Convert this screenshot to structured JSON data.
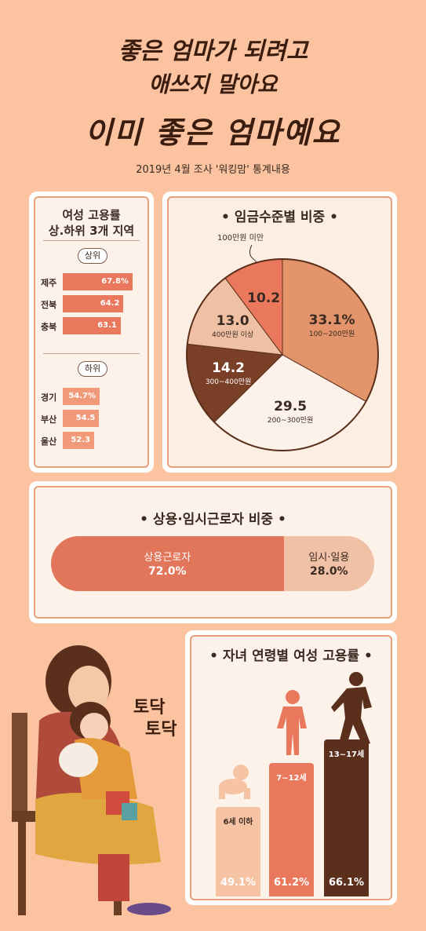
{
  "header": {
    "line1": "좋은 엄마가 되려고",
    "line2": "애쓰지 말아요",
    "line3": "이미 좋은 엄마예요",
    "subtitle": "2019년 4월 조사 '워킹맘' 통계내용"
  },
  "regions": {
    "title_line1": "여성 고용률",
    "title_line2": "상.하위 3개 지역",
    "top_label": "상위",
    "bottom_label": "하위",
    "top": [
      {
        "name": "제주",
        "value_label": "67.8%"
      },
      {
        "name": "전북",
        "value_label": "64.2"
      },
      {
        "name": "충북",
        "value_label": "63.1"
      }
    ],
    "bottom": [
      {
        "name": "경기",
        "value_label": "54.7%"
      },
      {
        "name": "부산",
        "value_label": "54.5"
      },
      {
        "name": "울산",
        "value_label": "52.3"
      }
    ]
  },
  "wage": {
    "title": "• 임금수준별 비중 •",
    "callout": "100만원 미만",
    "slices": [
      {
        "value_label": "33.1%",
        "label": "100~200만원"
      },
      {
        "value_label": "29.5",
        "label": "200~300만원"
      },
      {
        "value_label": "14.2",
        "label": "300~400만원"
      },
      {
        "value_label": "13.0",
        "label": "400만원 이상"
      },
      {
        "value_label": "10.2",
        "label": ""
      }
    ]
  },
  "employment": {
    "title": "• 상용·임시근로자 비중 •",
    "regular": {
      "label": "상용근로자",
      "value_label": "72.0%"
    },
    "temp": {
      "label": "임시·일용",
      "value_label": "28.0%"
    }
  },
  "age": {
    "title": "• 자녀 연령별 여성 고용률 •",
    "bars": [
      {
        "name": "6세 이하",
        "value_label": "49.1%"
      },
      {
        "name": "7~12세",
        "value_label": "61.2%"
      },
      {
        "name": "13~17세",
        "value_label": "66.1%"
      }
    ]
  },
  "illustration": {
    "text": "토닥 토닥"
  },
  "colors": {
    "background": "#fbc3a0",
    "pie": [
      "#e3946a",
      "#fdf2ea",
      "#7a3f27",
      "#f0c0a4",
      "#e9785d"
    ],
    "regular": "#e2765b",
    "temp": "#f0c1a7",
    "age": [
      "#f6c4a4",
      "#e9785d",
      "#5a2f1b"
    ]
  },
  "chart_data": [
    {
      "type": "bar",
      "title": "여성 고용률 상.하위 3개 지역",
      "categories": [
        "제주",
        "전북",
        "충북",
        "경기",
        "부산",
        "울산"
      ],
      "values": [
        67.8,
        64.2,
        63.1,
        54.7,
        54.5,
        52.3
      ]
    },
    {
      "type": "pie",
      "title": "임금수준별 비중",
      "categories": [
        "100~200만원",
        "200~300만원",
        "300~400만원",
        "400만원 이상",
        "100만원 미만"
      ],
      "values": [
        33.1,
        29.5,
        14.2,
        13.0,
        10.2
      ]
    },
    {
      "type": "bar",
      "title": "상용·임시근로자 비중",
      "categories": [
        "상용근로자",
        "임시·일용"
      ],
      "values": [
        72.0,
        28.0
      ]
    },
    {
      "type": "bar",
      "title": "자녀 연령별 여성 고용률",
      "categories": [
        "6세 이하",
        "7~12세",
        "13~17세"
      ],
      "values": [
        49.1,
        61.2,
        66.1
      ]
    }
  ]
}
